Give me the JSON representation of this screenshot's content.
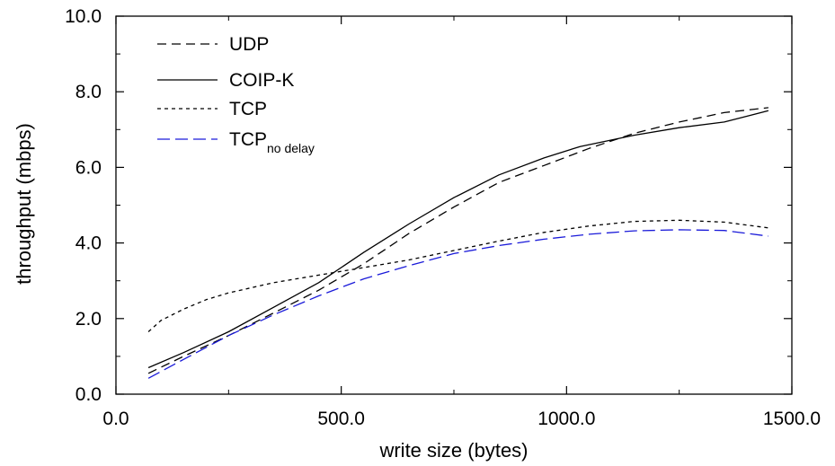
{
  "chart_data": {
    "type": "line",
    "title": "",
    "xlabel": "write size (bytes)",
    "ylabel": "throughput (mbps)",
    "xlim": [
      0,
      1500
    ],
    "ylim": [
      0,
      10
    ],
    "grid": false,
    "legend_position": "top-left",
    "x_ticks": [
      {
        "value": 0,
        "label": "0.0"
      },
      {
        "value": 500,
        "label": "500.0"
      },
      {
        "value": 1000,
        "label": "1000.0"
      },
      {
        "value": 1500,
        "label": "1500.0"
      }
    ],
    "y_ticks": [
      {
        "value": 0,
        "label": "0.0"
      },
      {
        "value": 2,
        "label": "2.0"
      },
      {
        "value": 4,
        "label": "4.0"
      },
      {
        "value": 6,
        "label": "6.0"
      },
      {
        "value": 8,
        "label": "8.0"
      },
      {
        "value": 10,
        "label": "10.0"
      }
    ],
    "series": [
      {
        "name": "UDP",
        "name_sub": "",
        "color": "#000000",
        "dash": "long-dash",
        "x": [
          72,
          150,
          250,
          350,
          450,
          550,
          650,
          750,
          850,
          950,
          1050,
          1150,
          1250,
          1350,
          1448
        ],
        "y": [
          0.55,
          1.0,
          1.55,
          2.15,
          2.75,
          3.45,
          4.25,
          4.95,
          5.6,
          6.05,
          6.5,
          6.9,
          7.2,
          7.45,
          7.58
        ]
      },
      {
        "name": "COIP-K",
        "name_sub": "",
        "color": "#000000",
        "dash": "solid",
        "x": [
          72,
          150,
          250,
          350,
          450,
          550,
          650,
          750,
          850,
          950,
          1030,
          1150,
          1250,
          1350,
          1448
        ],
        "y": [
          0.7,
          1.1,
          1.65,
          2.3,
          2.95,
          3.75,
          4.5,
          5.2,
          5.8,
          6.25,
          6.55,
          6.85,
          7.05,
          7.2,
          7.5
        ]
      },
      {
        "name": "TCP",
        "name_sub": "",
        "color": "#000000",
        "dash": "short-dash",
        "x": [
          72,
          100,
          150,
          200,
          250,
          350,
          450,
          550,
          650,
          750,
          850,
          950,
          1050,
          1150,
          1250,
          1350,
          1448
        ],
        "y": [
          1.65,
          1.95,
          2.25,
          2.5,
          2.68,
          2.95,
          3.15,
          3.35,
          3.55,
          3.8,
          4.05,
          4.28,
          4.45,
          4.57,
          4.6,
          4.55,
          4.4
        ]
      },
      {
        "name": "TCP",
        "name_sub": "no delay",
        "color": "#1a1ad9",
        "dash": "blue-dash",
        "x": [
          72,
          150,
          250,
          350,
          450,
          550,
          650,
          750,
          850,
          950,
          1050,
          1150,
          1250,
          1350,
          1448
        ],
        "y": [
          0.42,
          0.92,
          1.55,
          2.1,
          2.6,
          3.05,
          3.4,
          3.72,
          3.93,
          4.1,
          4.23,
          4.32,
          4.35,
          4.33,
          4.18
        ]
      }
    ]
  }
}
